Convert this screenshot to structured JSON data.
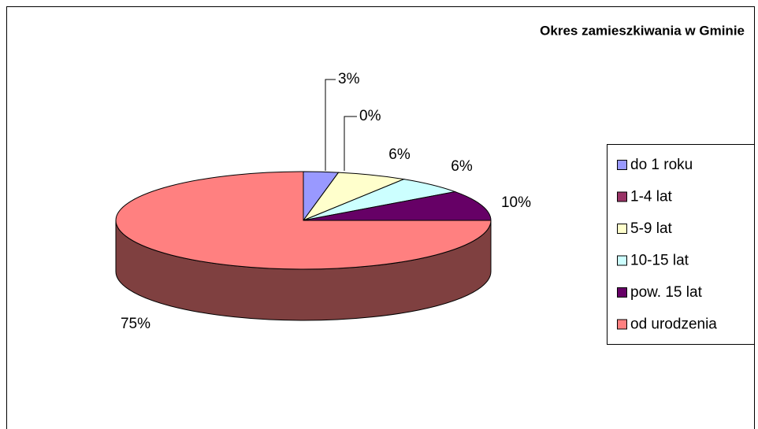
{
  "chart_data": {
    "type": "pie",
    "title": "Okres zamieszkiwania w Gminie",
    "categories": [
      "do 1 roku",
      "1-4 lat",
      "5-9 lat",
      "10-15 lat",
      "pow. 15 lat",
      "od urodzenia"
    ],
    "values": [
      3,
      0,
      6,
      6,
      10,
      75
    ],
    "value_labels": [
      "3%",
      "0%",
      "6%",
      "6%",
      "10%",
      "75%"
    ],
    "colors": [
      "#9999ff",
      "#993366",
      "#ffffcc",
      "#ccffff",
      "#660066",
      "#ff8080"
    ],
    "legend": "right"
  }
}
